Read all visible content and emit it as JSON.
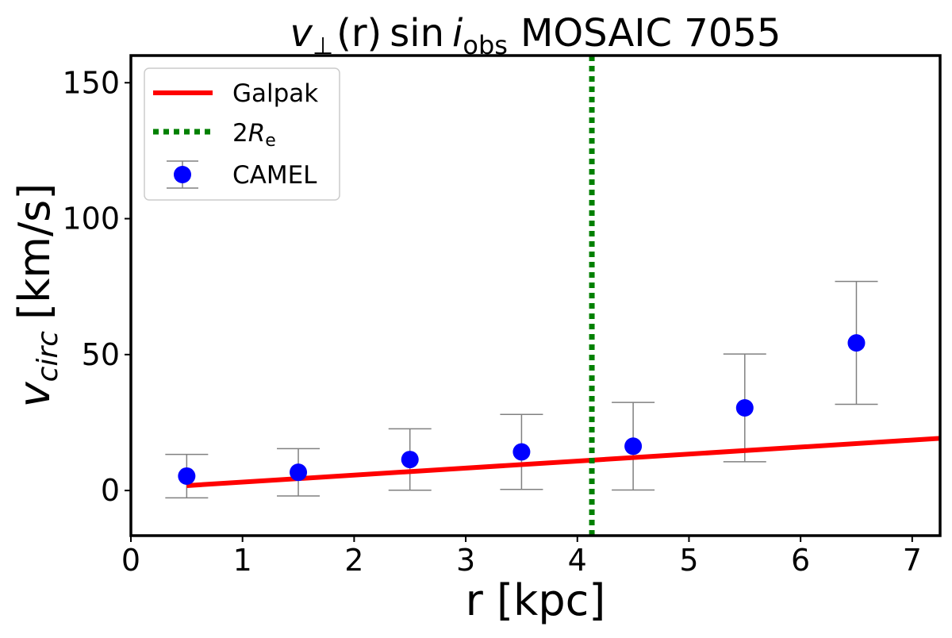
{
  "chart_data": {
    "type": "scatter",
    "title": {
      "v": "v",
      "perp": "⊥",
      "r": "(r)",
      "sin": "sin",
      "i": "i",
      "obs": "obs",
      "rest": "MOSAIC 7055"
    },
    "xlabel": "r [kpc]",
    "ylabel": {
      "v": "v",
      "sub": "circ",
      "unit": "[km/s]"
    },
    "xlim": [
      0,
      7.25
    ],
    "ylim": [
      -16.6,
      160
    ],
    "xticks": [
      0,
      1,
      2,
      3,
      4,
      5,
      6,
      7
    ],
    "yticks": [
      0,
      50,
      100,
      150
    ],
    "grid": false,
    "legend_placement": "top-left",
    "series": [
      {
        "name": "Galpak",
        "kind": "line",
        "color": "#ff0000",
        "x": [
          0.5,
          7.25
        ],
        "y": [
          1.8,
          19.2
        ]
      },
      {
        "name": "2Rₑ",
        "name_main": "2",
        "name_italic": "R",
        "name_sub": "e",
        "kind": "vline",
        "color": "#008000",
        "x": 4.13
      },
      {
        "name": "CAMEL",
        "kind": "errorbar",
        "color": "#0000ff",
        "errcolor": "#808080",
        "x": [
          0.5,
          1.5,
          2.5,
          3.5,
          4.5,
          5.5,
          6.5
        ],
        "y": [
          5.3,
          6.7,
          11.4,
          14.2,
          16.3,
          30.4,
          54.3
        ],
        "yerr": [
          8.0,
          8.7,
          11.3,
          13.8,
          16.1,
          19.8,
          22.6
        ]
      }
    ]
  }
}
